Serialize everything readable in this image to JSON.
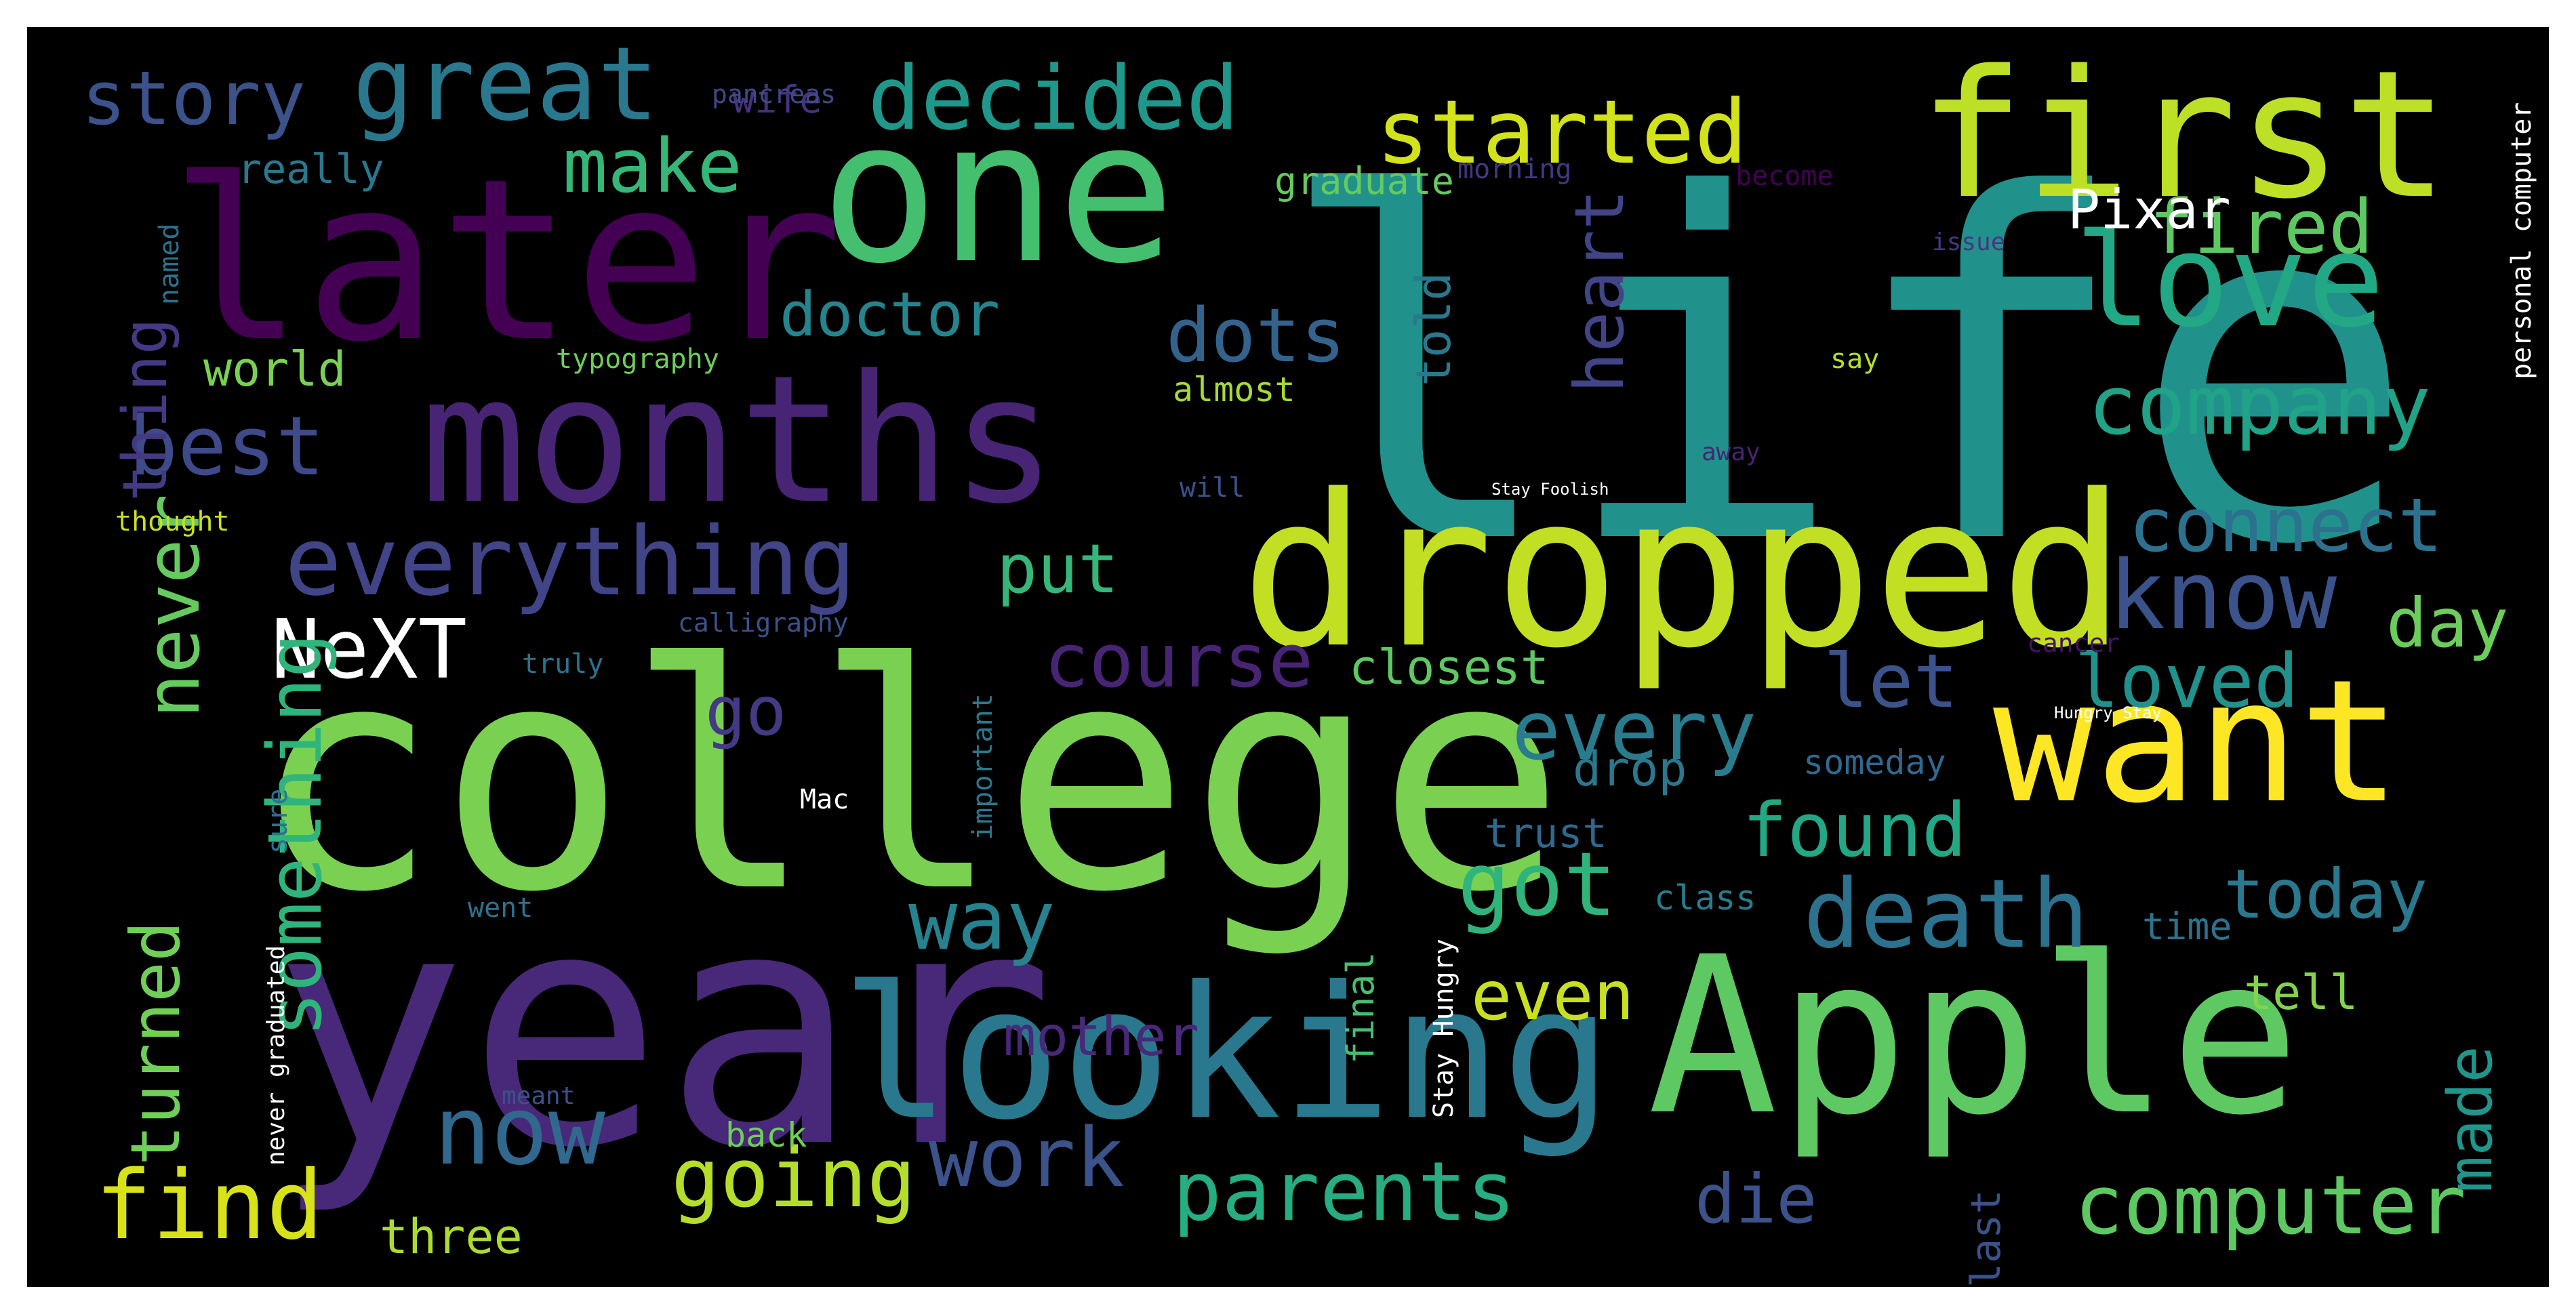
{
  "wordcloud": {
    "background": "#000000",
    "colormap": "viridis",
    "words": [
      {
        "id": "life",
        "text": "life",
        "color": "#21918c"
      },
      {
        "id": "college",
        "text": "college",
        "color": "#7ad151"
      },
      {
        "id": "year",
        "text": "year",
        "color": "#482878"
      },
      {
        "id": "apple",
        "text": "Apple",
        "color": "#5ec962"
      },
      {
        "id": "looking",
        "text": "looking",
        "color": "#2a788e"
      },
      {
        "id": "dropped",
        "text": "dropped",
        "color": "#c2df23"
      },
      {
        "id": "one",
        "text": "one",
        "color": "#44bf70"
      },
      {
        "id": "months",
        "text": "months",
        "color": "#482475"
      },
      {
        "id": "later",
        "text": "later",
        "color": "#440154"
      },
      {
        "id": "first",
        "text": "first",
        "color": "#bddf26"
      },
      {
        "id": "want",
        "text": "want",
        "color": "#fde725"
      },
      {
        "id": "love",
        "text": "love",
        "color": "#22a884"
      },
      {
        "id": "great",
        "text": "great",
        "color": "#2a788e"
      },
      {
        "id": "decided",
        "text": "decided",
        "color": "#1f988b"
      },
      {
        "id": "started",
        "text": "started",
        "color": "#d2e21b"
      },
      {
        "id": "story",
        "text": "story",
        "color": "#3b528b"
      },
      {
        "id": "everything",
        "text": "everything",
        "color": "#414487"
      },
      {
        "id": "best",
        "text": "best",
        "color": "#3e4a89"
      },
      {
        "id": "company",
        "text": "company",
        "color": "#20a386"
      },
      {
        "id": "connect",
        "text": "connect",
        "color": "#2c728e"
      },
      {
        "id": "know",
        "text": "know",
        "color": "#3b528b"
      },
      {
        "id": "death",
        "text": "death",
        "color": "#2c728e"
      },
      {
        "id": "work",
        "text": "work",
        "color": "#3b528b"
      },
      {
        "id": "parents",
        "text": "parents",
        "color": "#26ad81"
      },
      {
        "id": "computer",
        "text": "computer",
        "color": "#5ec962"
      },
      {
        "id": "now",
        "text": "now",
        "color": "#31688e"
      },
      {
        "id": "going",
        "text": "going",
        "color": "#b5de2b"
      },
      {
        "id": "find",
        "text": "find",
        "color": "#d8e219"
      },
      {
        "id": "got",
        "text": "got",
        "color": "#2fb47c"
      },
      {
        "id": "way",
        "text": "way",
        "color": "#26828e"
      },
      {
        "id": "every",
        "text": "every",
        "color": "#287c8e"
      },
      {
        "id": "course",
        "text": "course",
        "color": "#482475"
      },
      {
        "id": "nextw",
        "text": "NeXT",
        "color": "#2c728e"
      },
      {
        "id": "something",
        "text": "something",
        "color": "#2fb47c"
      },
      {
        "id": "never",
        "text": "never",
        "color": "#65cb5e"
      },
      {
        "id": "turned",
        "text": "turned",
        "color": "#70cf57"
      },
      {
        "id": "thing",
        "text": "thing",
        "color": "#443983"
      },
      {
        "id": "put",
        "text": "put",
        "color": "#35b779"
      },
      {
        "id": "make",
        "text": "make",
        "color": "#35b779"
      },
      {
        "id": "dots",
        "text": "dots",
        "color": "#33638d"
      },
      {
        "id": "doctor",
        "text": "doctor",
        "color": "#25858e"
      },
      {
        "id": "heart",
        "text": "heart",
        "color": "#414487"
      },
      {
        "id": "told",
        "text": "told",
        "color": "#2a788e"
      },
      {
        "id": "fired",
        "text": "fired",
        "color": "#5ec962"
      },
      {
        "id": "pixar",
        "text": "Pixar",
        "color": "#3e4a89"
      },
      {
        "id": "day",
        "text": "day",
        "color": "#6ccd5a"
      },
      {
        "id": "loved",
        "text": "loved",
        "color": "#21918c"
      },
      {
        "id": "let",
        "text": "let",
        "color": "#3b528b"
      },
      {
        "id": "closest",
        "text": "closest",
        "color": "#5ec962"
      },
      {
        "id": "go",
        "text": "go",
        "color": "#443a83"
      },
      {
        "id": "found",
        "text": "found",
        "color": "#22a884"
      },
      {
        "id": "today",
        "text": "today",
        "color": "#2a788e"
      },
      {
        "id": "made",
        "text": "made",
        "color": "#1f968b"
      },
      {
        "id": "even",
        "text": "even",
        "color": "#c8e020"
      },
      {
        "id": "die",
        "text": "die",
        "color": "#3b528b"
      },
      {
        "id": "drop",
        "text": "drop",
        "color": "#2a788e"
      },
      {
        "id": "trust",
        "text": "trust",
        "color": "#31688e"
      },
      {
        "id": "tell",
        "text": "tell",
        "color": "#84d44b"
      },
      {
        "id": "time",
        "text": "time",
        "color": "#2c728e"
      },
      {
        "id": "mother",
        "text": "mother",
        "color": "#482878"
      },
      {
        "id": "three",
        "text": "three",
        "color": "#addc30"
      },
      {
        "id": "back",
        "text": "back",
        "color": "#6ece58"
      },
      {
        "id": "really",
        "text": "really",
        "color": "#2a788e"
      },
      {
        "id": "world",
        "text": "world",
        "color": "#7ad151"
      },
      {
        "id": "graduate",
        "text": "graduate",
        "color": "#65cb5e"
      },
      {
        "id": "almost",
        "text": "almost",
        "color": "#a5db36"
      },
      {
        "id": "someday",
        "text": "someday",
        "color": "#31688e"
      },
      {
        "id": "class",
        "text": "class",
        "color": "#287c8e"
      },
      {
        "id": "final",
        "text": "final",
        "color": "#46c06f"
      },
      {
        "id": "last",
        "text": "last",
        "color": "#3b528b"
      },
      {
        "id": "wife",
        "text": "wife",
        "color": "#46337e"
      },
      {
        "id": "pancreas",
        "text": "pancreas",
        "color": "#3e4a89"
      },
      {
        "id": "morning",
        "text": "morning",
        "color": "#453781"
      },
      {
        "id": "become",
        "text": "become",
        "color": "#440154"
      },
      {
        "id": "issue",
        "text": "issue",
        "color": "#453781"
      },
      {
        "id": "named",
        "text": "named",
        "color": "#2c728e"
      },
      {
        "id": "typography",
        "text": "typography",
        "color": "#6ece58"
      },
      {
        "id": "say",
        "text": "say",
        "color": "#b5de2b"
      },
      {
        "id": "personal_computer",
        "text": "personal computer",
        "color": "#2a788e"
      },
      {
        "id": "will",
        "text": "will",
        "color": "#3b528b"
      },
      {
        "id": "away",
        "text": "away",
        "color": "#482475"
      },
      {
        "id": "stay_foolish",
        "text": "Stay Foolish",
        "color": "#3e4a89"
      },
      {
        "id": "thought",
        "text": "thought",
        "color": "#c8e020"
      },
      {
        "id": "calligraphy",
        "text": "calligraphy",
        "color": "#3b528b"
      },
      {
        "id": "truly",
        "text": "truly",
        "color": "#2c728e"
      },
      {
        "id": "cancer",
        "text": "cancer",
        "color": "#471164"
      },
      {
        "id": "hungry_stay",
        "text": "Hungry Stay",
        "color": "#3e4a89"
      },
      {
        "id": "important",
        "text": "important",
        "color": "#2a788e"
      },
      {
        "id": "sure",
        "text": "sure",
        "color": "#2c728e"
      },
      {
        "id": "mac",
        "text": "Mac",
        "color": "#65cb5e"
      },
      {
        "id": "went",
        "text": "went",
        "color": "#2c728e"
      },
      {
        "id": "never_graduated",
        "text": "never graduated",
        "color": "#2a788e"
      },
      {
        "id": "stay_hungry",
        "text": "Stay Hungry",
        "color": "#5ec962"
      },
      {
        "id": "meant",
        "text": "meant",
        "color": "#3b528b"
      }
    ]
  }
}
